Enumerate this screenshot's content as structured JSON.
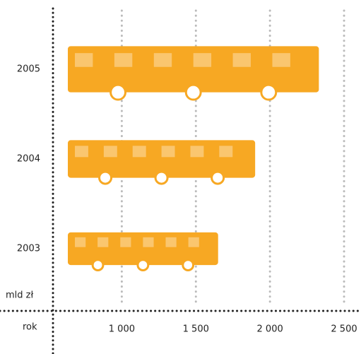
{
  "chart_data": {
    "type": "bar",
    "orientation": "horizontal",
    "categories": [
      "2005",
      "2004",
      "2003"
    ],
    "values": [
      2330,
      1900,
      1650
    ],
    "color": "#f7a823",
    "x_label": "mld zł",
    "y_label": "rok",
    "xlim": [
      550,
      2600
    ],
    "xticks": [
      {
        "value": 1000,
        "label": "1 000"
      },
      {
        "value": 1500,
        "label": "1 500"
      },
      {
        "value": 2000,
        "label": "2 000"
      },
      {
        "value": 2500,
        "label": "2 500"
      }
    ],
    "grid": true
  }
}
